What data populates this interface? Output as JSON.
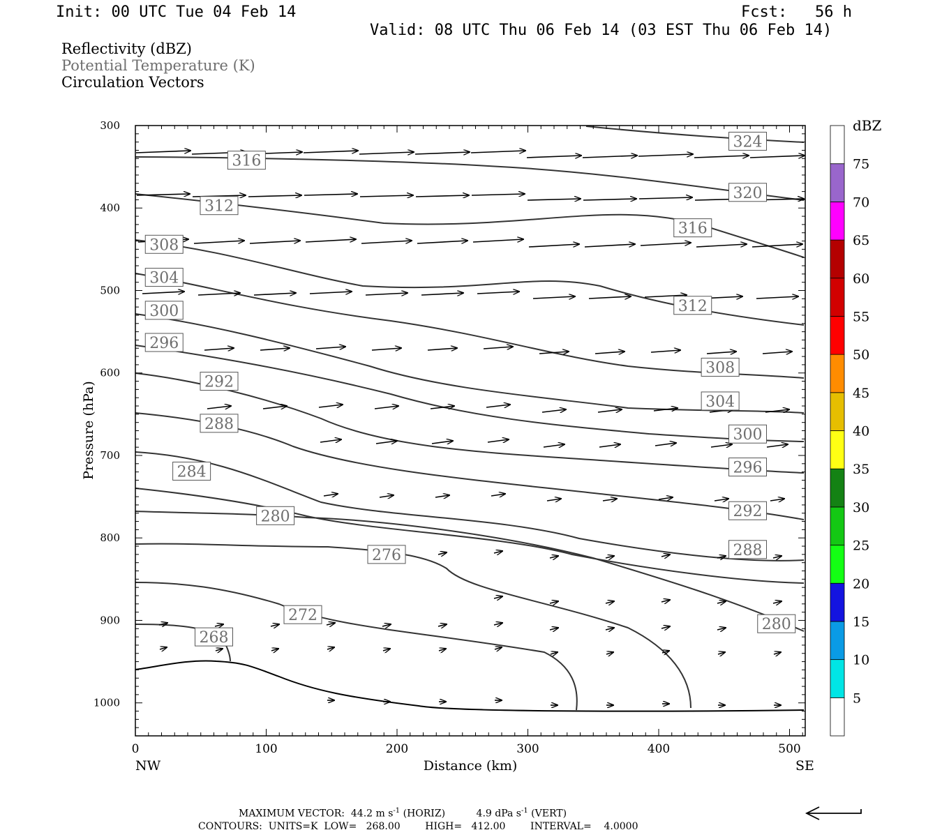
{
  "header": {
    "init": "Init: 00 UTC Tue 04 Feb 14",
    "fcst": "Fcst:   56 h",
    "valid": "Valid: 08 UTC Thu 06 Feb 14 (03 EST Thu 06 Feb 14)"
  },
  "legend": {
    "reflectivity": "Reflectivity (dBZ)",
    "theta": "Potential Temperature (K)",
    "vectors": "Circulation Vectors"
  },
  "colors": {
    "contour": "#333333",
    "theta_label": "#6e6e6e",
    "background": "#ffffff"
  },
  "chart_data": {
    "type": "line",
    "xlabel": "Distance (km)",
    "ylabel": "Pressure (hPa)",
    "xlim": [
      0,
      512
    ],
    "ylim": [
      1040,
      300
    ],
    "xticks": [
      0,
      100,
      200,
      300,
      400,
      500
    ],
    "yticks": [
      300,
      400,
      500,
      600,
      700,
      800,
      900,
      1000
    ],
    "x_end_labels": {
      "left": "NW",
      "right": "SE"
    },
    "grid": false,
    "contour_labels": [
      {
        "text": "324",
        "x": 468,
        "p": 319
      },
      {
        "text": "316",
        "x": 85,
        "p": 342
      },
      {
        "text": "320",
        "x": 468,
        "p": 381
      },
      {
        "text": "312",
        "x": 64,
        "p": 397
      },
      {
        "text": "316",
        "x": 426,
        "p": 424
      },
      {
        "text": "308",
        "x": 22,
        "p": 444
      },
      {
        "text": "304",
        "x": 22,
        "p": 484
      },
      {
        "text": "312",
        "x": 426,
        "p": 518
      },
      {
        "text": "300",
        "x": 22,
        "p": 524
      },
      {
        "text": "296",
        "x": 22,
        "p": 563
      },
      {
        "text": "308",
        "x": 447,
        "p": 593
      },
      {
        "text": "292",
        "x": 64,
        "p": 610
      },
      {
        "text": "304",
        "x": 447,
        "p": 634
      },
      {
        "text": "288",
        "x": 64,
        "p": 661
      },
      {
        "text": "300",
        "x": 468,
        "p": 674
      },
      {
        "text": "284",
        "x": 43,
        "p": 719
      },
      {
        "text": "296",
        "x": 468,
        "p": 714
      },
      {
        "text": "292",
        "x": 468,
        "p": 767
      },
      {
        "text": "280",
        "x": 107,
        "p": 773
      },
      {
        "text": "288",
        "x": 468,
        "p": 814
      },
      {
        "text": "276",
        "x": 192,
        "p": 820
      },
      {
        "text": "272",
        "x": 128,
        "p": 893
      },
      {
        "text": "280",
        "x": 490,
        "p": 904
      },
      {
        "text": "268",
        "x": 60,
        "p": 920
      }
    ],
    "colorbar": {
      "title": "dBZ",
      "levels": [
        5,
        10,
        15,
        20,
        25,
        30,
        35,
        40,
        45,
        50,
        55,
        60,
        65,
        70,
        75
      ],
      "colors": [
        "#ffffff",
        "#00e5e5",
        "#0a9be5",
        "#1414e0",
        "#14ff14",
        "#14c814",
        "#148214",
        "#ffff14",
        "#e6be00",
        "#ff8c00",
        "#ff0000",
        "#d20000",
        "#b40000",
        "#ff00ff",
        "#9966cc",
        "#ffffff"
      ]
    }
  },
  "footer": {
    "line1_lead": "MAXIMUM VECTOR:  44.2 m s",
    "line1_sup1": "-1",
    "line1_mid": " (HORIZ)          4.9 dPa s",
    "line1_sup2": "-1",
    "line1_tail": " (VERT)",
    "line2": "CONTOURS:  UNITS=K  LOW=   268.00        HIGH=   412.00        INTERVAL=    4.0000"
  }
}
